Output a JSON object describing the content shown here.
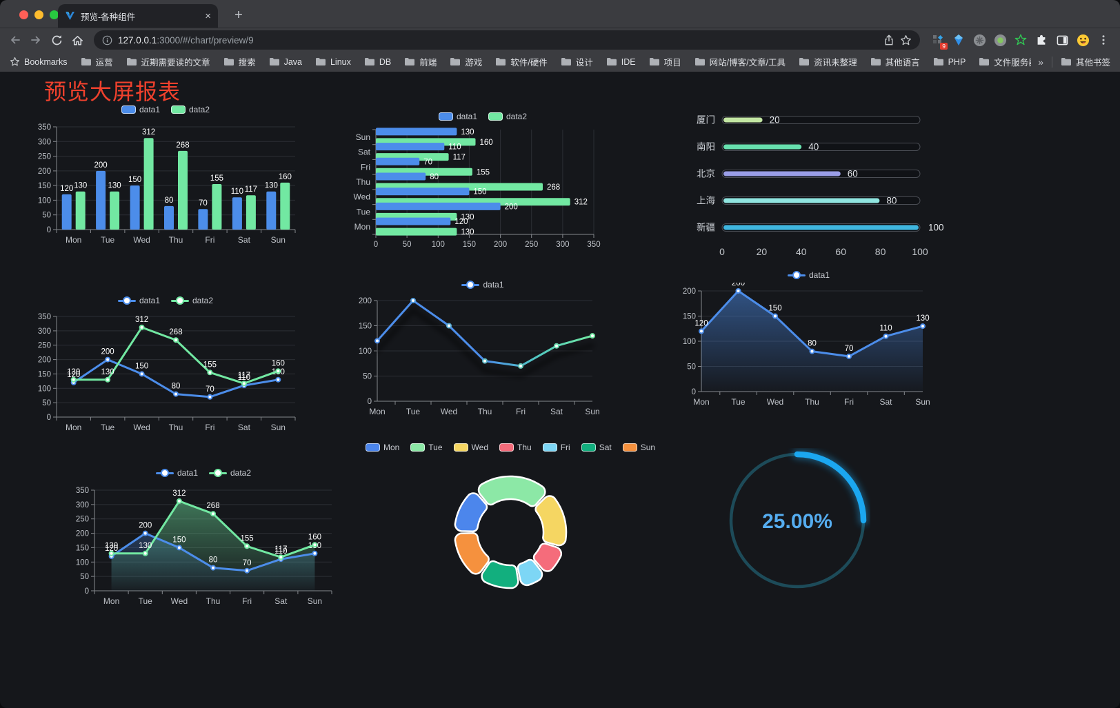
{
  "browser": {
    "traffic_lights": [
      "#ff5f57",
      "#febc2e",
      "#28c840"
    ],
    "tab_title": "预览-各种组件",
    "tab_close": "×",
    "new_tab": "+",
    "url_host": "127.0.0.1",
    "url_rest": ":3000/#/chart/preview/9",
    "ext_badge": "9"
  },
  "bookmarks": {
    "label": "Bookmarks",
    "items": [
      "运营",
      "近期需要读的文章",
      "搜索",
      "Java",
      "Linux",
      "DB",
      "前端",
      "游戏",
      "软件/硬件",
      "设计",
      "IDE",
      "项目",
      "网站/博客/文章/工具",
      "资讯未整理",
      "其他语言",
      "PHP",
      "文件服务器"
    ],
    "overflow": "»",
    "other": "其他书签"
  },
  "page": {
    "title": "预览大屏报表",
    "title_color": "#f0412d",
    "background": "#15171b"
  },
  "palette": {
    "data1": "#4c8dea",
    "data2": "#72e8a2"
  },
  "chart_data": [
    {
      "id": "bar-vertical",
      "type": "bar",
      "categories": [
        "Mon",
        "Tue",
        "Wed",
        "Thu",
        "Fri",
        "Sat",
        "Sun"
      ],
      "series": [
        {
          "name": "data1",
          "color": "#4c8dea",
          "values": [
            120,
            200,
            150,
            80,
            70,
            110,
            130
          ]
        },
        {
          "name": "data2",
          "color": "#72e8a2",
          "values": [
            130,
            130,
            312,
            268,
            155,
            117,
            160
          ]
        }
      ],
      "yticks": [
        0,
        50,
        100,
        150,
        200,
        250,
        300,
        350
      ],
      "ylim": [
        0,
        350
      ],
      "value_labels": true,
      "legend_position": "top",
      "grid": true
    },
    {
      "id": "bar-horizontal",
      "type": "bar",
      "orientation": "horizontal",
      "categories": [
        "Mon",
        "Tue",
        "Wed",
        "Thu",
        "Fri",
        "Sat",
        "Sun"
      ],
      "categories_top_to_bottom": [
        "Sun",
        "Sat",
        "Fri",
        "Thu",
        "Wed",
        "Tue",
        "Mon"
      ],
      "series": [
        {
          "name": "data1",
          "color": "#4c8dea",
          "values": [
            120,
            200,
            150,
            80,
            70,
            110,
            130
          ]
        },
        {
          "name": "data2",
          "color": "#72e8a2",
          "values": [
            130,
            130,
            312,
            268,
            155,
            117,
            160
          ]
        }
      ],
      "xticks": [
        0,
        50,
        100,
        150,
        200,
        250,
        300,
        350
      ],
      "xlim": [
        0,
        350
      ],
      "value_labels": true,
      "legend_position": "top",
      "grid": true
    },
    {
      "id": "progress-bars",
      "type": "bar",
      "orientation": "horizontal-progress",
      "categories": [
        "厦门",
        "南阳",
        "北京",
        "上海",
        "新疆"
      ],
      "values": [
        20,
        40,
        60,
        80,
        100
      ],
      "colors": [
        "#c3e6a3",
        "#67e0ae",
        "#9a9ee8",
        "#90e5e0",
        "#3fb6df"
      ],
      "xticks": [
        0,
        20,
        40,
        60,
        80,
        100
      ],
      "xlim": [
        0,
        100
      ]
    },
    {
      "id": "line-two-series",
      "type": "line",
      "categories": [
        "Mon",
        "Tue",
        "Wed",
        "Thu",
        "Fri",
        "Sat",
        "Sun"
      ],
      "series": [
        {
          "name": "data1",
          "color": "#4c8dea",
          "values": [
            120,
            200,
            150,
            80,
            70,
            110,
            130
          ]
        },
        {
          "name": "data2",
          "color": "#72e8a2",
          "values": [
            130,
            130,
            312,
            268,
            155,
            117,
            160
          ]
        }
      ],
      "yticks": [
        0,
        50,
        100,
        150,
        200,
        250,
        300,
        350
      ],
      "ylim": [
        0,
        350
      ],
      "show_point_labels": true,
      "boundary_gap": true,
      "legend_position": "top"
    },
    {
      "id": "line-gradient",
      "type": "line",
      "categories": [
        "Mon",
        "Tue",
        "Wed",
        "Thu",
        "Fri",
        "Sat",
        "Sun"
      ],
      "series": [
        {
          "name": "data1",
          "color": "#4c8dea",
          "color_end": "#72e8a2",
          "gradient": true,
          "values": [
            120,
            200,
            150,
            80,
            70,
            110,
            130
          ]
        }
      ],
      "yticks": [
        0,
        50,
        100,
        150,
        200
      ],
      "ylim": [
        0,
        200
      ],
      "show_point_labels": false,
      "boundary_gap": false,
      "shadow": true,
      "legend_position": "top"
    },
    {
      "id": "area-single",
      "type": "area",
      "categories": [
        "Mon",
        "Tue",
        "Wed",
        "Thu",
        "Fri",
        "Sat",
        "Sun"
      ],
      "series": [
        {
          "name": "data1",
          "color": "#4c8dea",
          "area": true,
          "values": [
            120,
            200,
            150,
            80,
            70,
            110,
            130
          ]
        }
      ],
      "yticks": [
        0,
        50,
        100,
        150,
        200
      ],
      "ylim": [
        0,
        200
      ],
      "show_point_labels": true,
      "boundary_gap": false,
      "legend_position": "top"
    },
    {
      "id": "area-two-series",
      "type": "area",
      "categories": [
        "Mon",
        "Tue",
        "Wed",
        "Thu",
        "Fri",
        "Sat",
        "Sun"
      ],
      "series": [
        {
          "name": "data1",
          "color": "#4c8dea",
          "area": true,
          "values": [
            120,
            200,
            150,
            80,
            70,
            110,
            130
          ]
        },
        {
          "name": "data2",
          "color": "#72e8a2",
          "area": true,
          "values": [
            130,
            130,
            312,
            268,
            155,
            117,
            160
          ]
        }
      ],
      "yticks": [
        0,
        50,
        100,
        150,
        200,
        250,
        300,
        350
      ],
      "ylim": [
        0,
        350
      ],
      "show_point_labels": true,
      "boundary_gap": true,
      "legend_position": "top"
    },
    {
      "id": "donut",
      "type": "pie",
      "categories": [
        "Mon",
        "Tue",
        "Wed",
        "Thu",
        "Fri",
        "Sat",
        "Sun"
      ],
      "values": [
        120,
        200,
        150,
        80,
        70,
        110,
        130
      ],
      "colors": [
        "#4c86ec",
        "#8ce8a6",
        "#f5d662",
        "#f56c7b",
        "#7dd6f5",
        "#12af7e",
        "#f5913e"
      ],
      "legend_position": "top"
    },
    {
      "id": "gauge",
      "type": "gauge",
      "value": 25,
      "max": 100,
      "label": "25.00%",
      "track_color": "#1d4b59",
      "progress_color": "#1ba7f0",
      "text_color": "#55adf0"
    }
  ]
}
